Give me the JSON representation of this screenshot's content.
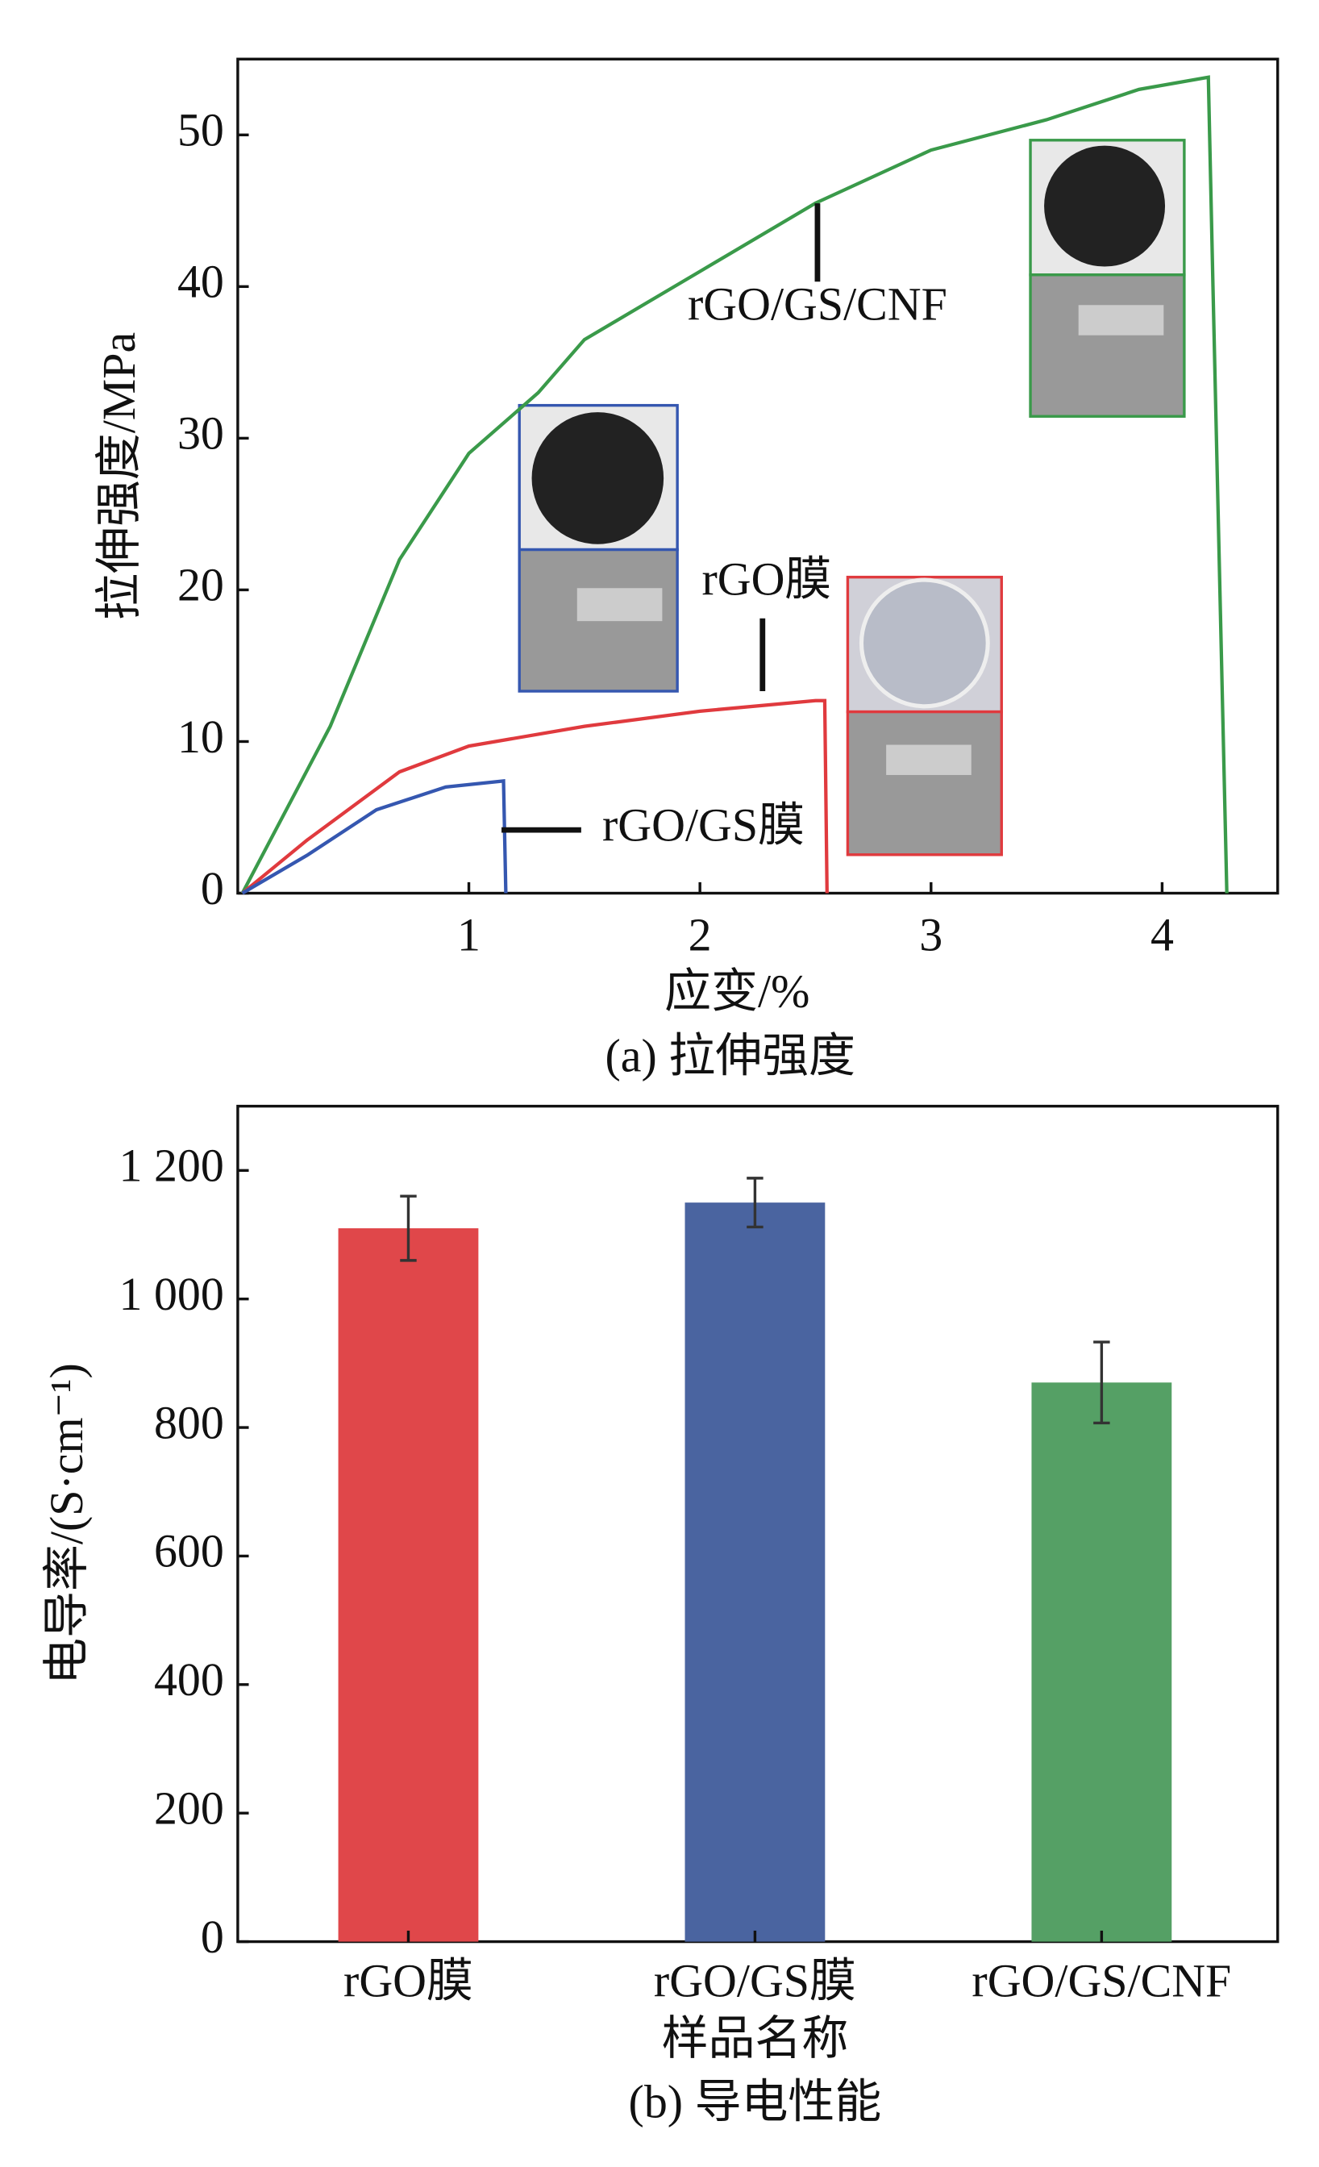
{
  "chart_data": [
    {
      "type": "line",
      "caption": "(a) 拉伸强度",
      "xlabel": "应变/%",
      "ylabel": "拉伸强度/MPa",
      "xlim": [
        0,
        4.5
      ],
      "ylim": [
        0,
        55
      ],
      "xticks": [
        1,
        2,
        3,
        4
      ],
      "yticks": [
        0,
        10,
        20,
        30,
        40,
        50
      ],
      "series": [
        {
          "name": "rGO/GS/CNF",
          "color": "#3a9a4a",
          "x": [
            0.02,
            0.4,
            0.7,
            1.0,
            1.3,
            1.5,
            2.0,
            2.5,
            3.0,
            3.5,
            3.9,
            4.2,
            4.22,
            4.28
          ],
          "values": [
            0,
            11,
            22,
            29,
            33,
            36.5,
            41,
            45.5,
            49,
            51,
            53,
            53.8,
            40,
            0
          ]
        },
        {
          "name": "rGO膜",
          "color": "#e03a3e",
          "x": [
            0.02,
            0.3,
            0.7,
            1.0,
            1.5,
            2.0,
            2.5,
            2.54,
            2.55
          ],
          "values": [
            0,
            3.5,
            8,
            9.7,
            11,
            12,
            12.7,
            12.7,
            0
          ]
        },
        {
          "name": "rGO/GS膜",
          "color": "#3557b0",
          "x": [
            0.02,
            0.3,
            0.6,
            0.9,
            1.15,
            1.16
          ],
          "values": [
            0,
            2.5,
            5.5,
            7,
            7.4,
            0
          ]
        }
      ]
    },
    {
      "type": "bar",
      "caption": "(b) 导电性能",
      "xlabel": "样品名称",
      "ylabel": "电导率/(S·cm⁻¹)",
      "ylim": [
        0,
        1300
      ],
      "yticks": [
        0,
        200,
        400,
        600,
        800,
        {
          "value": 1000,
          "label": "1 000"
        },
        {
          "value": 1200,
          "label": "1 200"
        }
      ],
      "categories": [
        "rGO膜",
        "rGO/GS膜",
        "rGO/GS/CNF"
      ],
      "values": [
        1110,
        1150,
        870
      ],
      "errors": [
        50,
        38,
        63
      ],
      "colors": [
        "#e0474a",
        "#4a64a0",
        "#55a065"
      ]
    }
  ]
}
